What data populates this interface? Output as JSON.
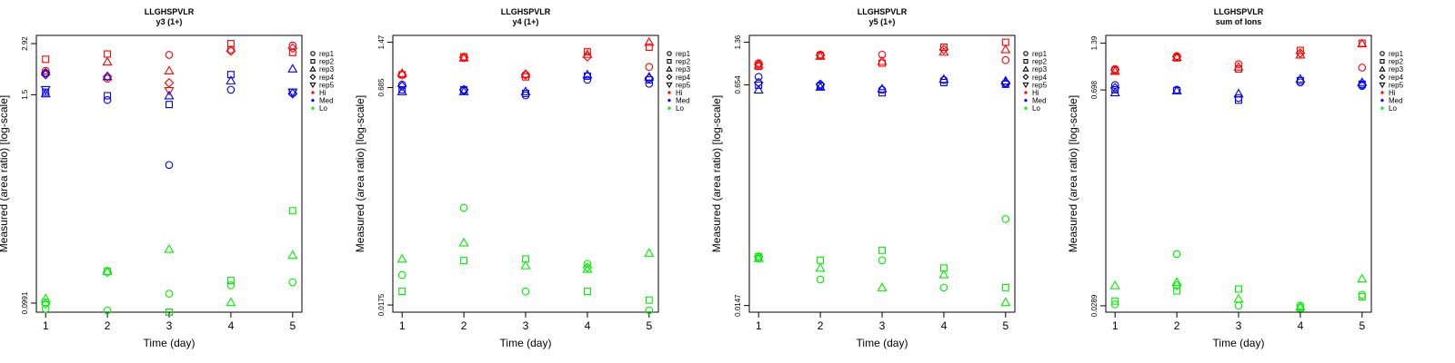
{
  "colors": {
    "Hi": "#ff0000",
    "Med": "#0000ff",
    "Lo": "#00ee00",
    "frame": "#000000"
  },
  "chart_data": [
    {
      "type": "scatter",
      "title": "LLGHSPVLR",
      "subtitle": "y3 (1+)",
      "xlabel": "Time (day)",
      "ylabel": "Measured (area ratio) [log-scale]",
      "xlim": [
        0.85,
        5.15
      ],
      "ylim": [
        0.088,
        3.25
      ],
      "x_ticks": [
        1,
        2,
        3,
        4,
        5
      ],
      "y_ticks": [
        {
          "value": 0.0991,
          "label": "0.0991"
        },
        {
          "value": 1.5,
          "label": "1.5"
        },
        {
          "value": 2.92,
          "label": "2.92"
        }
      ],
      "legend": {
        "reps": [
          "rep1",
          "rep2",
          "rep3",
          "rep4",
          "rep5"
        ],
        "groups": [
          "Hi",
          "Med",
          "Lo"
        ],
        "position": "right"
      },
      "series": [
        {
          "group": "Hi",
          "rep": "rep1",
          "values": [
            2.05,
            1.85,
            2.52,
            2.7,
            2.85
          ]
        },
        {
          "group": "Hi",
          "rep": "rep2",
          "values": [
            2.38,
            2.55,
            null,
            2.92,
            2.6
          ]
        },
        {
          "group": "Hi",
          "rep": "rep3",
          "values": [
            null,
            2.3,
            2.05,
            null,
            null
          ]
        },
        {
          "group": "Hi",
          "rep": "rep4",
          "values": [
            2.0,
            1.9,
            1.75,
            2.65,
            2.75
          ]
        },
        {
          "group": "Hi",
          "rep": "rep5",
          "values": [
            null,
            null,
            1.58,
            null,
            null
          ]
        },
        {
          "group": "Med",
          "rep": "rep1",
          "values": [
            1.98,
            1.4,
            0.6,
            1.6,
            null
          ]
        },
        {
          "group": "Med",
          "rep": "rep2",
          "values": [
            1.55,
            1.48,
            1.32,
            1.95,
            1.55
          ]
        },
        {
          "group": "Med",
          "rep": "rep3",
          "values": [
            1.52,
            1.9,
            1.48,
            1.8,
            2.1
          ]
        },
        {
          "group": "Med",
          "rep": "rep4",
          "values": [
            1.95,
            null,
            null,
            null,
            1.52
          ]
        },
        {
          "group": "Med",
          "rep": "rep5",
          "values": [
            1.6,
            null,
            null,
            null,
            1.55
          ]
        },
        {
          "group": "Lo",
          "rep": "rep1",
          "values": [
            0.092,
            0.09,
            0.112,
            0.125,
            0.13
          ]
        },
        {
          "group": "Lo",
          "rep": "rep2",
          "values": [
            0.1,
            0.15,
            0.088,
            0.133,
            0.33
          ]
        },
        {
          "group": "Lo",
          "rep": "rep3",
          "values": [
            0.105,
            0.15,
            0.2,
            0.1,
            0.185
          ]
        },
        {
          "group": "Lo",
          "rep": "rep4",
          "values": [
            0.098,
            0.148,
            null,
            null,
            null
          ]
        }
      ]
    },
    {
      "type": "scatter",
      "title": "LLGHSPVLR",
      "subtitle": "y4 (1+)",
      "xlabel": "Time (day)",
      "ylabel": "Measured (area ratio) [log-scale]",
      "xlim": [
        0.85,
        5.15
      ],
      "ylim": [
        0.0155,
        1.65
      ],
      "x_ticks": [
        1,
        2,
        3,
        4,
        5
      ],
      "y_ticks": [
        {
          "value": 0.0175,
          "label": "0.0175"
        },
        {
          "value": 0.685,
          "label": "0.685"
        },
        {
          "value": 1.47,
          "label": "1.47"
        }
      ],
      "legend": {
        "reps": [
          "rep1",
          "rep2",
          "rep3",
          "rep4",
          "rep5"
        ],
        "groups": [
          "Hi",
          "Med",
          "Lo"
        ],
        "position": "right"
      },
      "series": [
        {
          "group": "Hi",
          "rep": "rep1",
          "values": [
            0.85,
            1.13,
            0.85,
            null,
            0.97
          ]
        },
        {
          "group": "Hi",
          "rep": "rep2",
          "values": [
            0.85,
            1.15,
            0.82,
            1.25,
            1.35
          ]
        },
        {
          "group": "Hi",
          "rep": "rep3",
          "values": [
            0.87,
            1.13,
            0.86,
            1.2,
            1.47
          ]
        },
        {
          "group": "Hi",
          "rep": "rep4",
          "values": [
            0.85,
            1.14,
            0.85,
            1.15,
            null
          ]
        },
        {
          "group": "Med",
          "rep": "rep1",
          "values": [
            0.72,
            0.65,
            0.6,
            0.78,
            0.73
          ]
        },
        {
          "group": "Med",
          "rep": "rep2",
          "values": [
            0.66,
            0.66,
            0.62,
            0.83,
            0.78
          ]
        },
        {
          "group": "Med",
          "rep": "rep3",
          "values": [
            0.64,
            0.64,
            0.64,
            0.85,
            0.82
          ]
        },
        {
          "group": "Med",
          "rep": "rep4",
          "values": [
            0.7,
            0.66,
            null,
            null,
            0.8
          ]
        },
        {
          "group": "Lo",
          "rep": "rep1",
          "values": [
            0.029,
            0.09,
            0.022,
            0.035,
            0.016
          ]
        },
        {
          "group": "Lo",
          "rep": "rep2",
          "values": [
            0.022,
            0.037,
            0.038,
            0.022,
            0.019
          ]
        },
        {
          "group": "Lo",
          "rep": "rep3",
          "values": [
            0.038,
            0.05,
            0.034,
            0.032,
            0.042
          ]
        },
        {
          "group": "Lo",
          "rep": "rep4",
          "values": [
            null,
            null,
            null,
            0.033,
            null
          ]
        }
      ]
    },
    {
      "type": "scatter",
      "title": "LLGHSPVLR",
      "subtitle": "y5 (1+)",
      "xlabel": "Time (day)",
      "ylabel": "Measured (area ratio) [log-scale]",
      "xlim": [
        0.85,
        5.15
      ],
      "ylim": [
        0.0131,
        1.53
      ],
      "x_ticks": [
        1,
        2,
        3,
        4,
        5
      ],
      "y_ticks": [
        {
          "value": 0.0147,
          "label": "0.0147"
        },
        {
          "value": 0.654,
          "label": "0.654"
        },
        {
          "value": 1.36,
          "label": "1.36"
        }
      ],
      "legend": {
        "reps": [
          "rep1",
          "rep2",
          "rep3",
          "rep4",
          "rep5"
        ],
        "groups": [
          "Hi",
          "Med",
          "Lo"
        ],
        "position": "right"
      },
      "series": [
        {
          "group": "Hi",
          "rep": "rep1",
          "values": [
            0.95,
            1.1,
            1.1,
            null,
            1.0
          ]
        },
        {
          "group": "Hi",
          "rep": "rep2",
          "values": [
            0.9,
            1.08,
            0.95,
            1.25,
            1.36
          ]
        },
        {
          "group": "Hi",
          "rep": "rep3",
          "values": [
            0.92,
            1.07,
            0.98,
            1.15,
            1.2
          ]
        },
        {
          "group": "Hi",
          "rep": "rep4",
          "values": [
            0.93,
            1.09,
            null,
            1.2,
            null
          ]
        },
        {
          "group": "Med",
          "rep": "rep1",
          "values": [
            0.75,
            0.65,
            0.6,
            0.71,
            0.67
          ]
        },
        {
          "group": "Med",
          "rep": "rep2",
          "values": [
            0.65,
            0.64,
            0.57,
            0.68,
            0.66
          ]
        },
        {
          "group": "Med",
          "rep": "rep3",
          "values": [
            0.6,
            0.63,
            0.61,
            0.72,
            0.7
          ]
        },
        {
          "group": "Med",
          "rep": "rep4",
          "values": [
            0.68,
            0.66,
            null,
            null,
            0.68
          ]
        },
        {
          "group": "Lo",
          "rep": "rep1",
          "values": [
            0.033,
            0.023,
            0.032,
            0.02,
            0.065
          ]
        },
        {
          "group": "Lo",
          "rep": "rep2",
          "values": [
            0.034,
            0.032,
            0.038,
            0.028,
            0.02
          ]
        },
        {
          "group": "Lo",
          "rep": "rep3",
          "values": [
            0.033,
            0.028,
            0.02,
            0.025,
            0.0155
          ]
        },
        {
          "group": "Lo",
          "rep": "rep4",
          "values": [
            0.034,
            null,
            null,
            null,
            null
          ]
        }
      ]
    },
    {
      "type": "scatter",
      "title": "LLGHSPVLR",
      "subtitle": "sum of Ions",
      "xlabel": "Time (day)",
      "ylabel": "Measured (area ratio) [log-scale]",
      "xlim": [
        0.85,
        5.15
      ],
      "ylim": [
        0.0263,
        1.56
      ],
      "x_ticks": [
        1,
        2,
        3,
        4,
        5
      ],
      "y_ticks": [
        {
          "value": 0.0289,
          "label": "0.0289"
        },
        {
          "value": 0.698,
          "label": "0.698"
        },
        {
          "value": 1.39,
          "label": "1.39"
        }
      ],
      "legend": {
        "reps": [
          "rep1",
          "rep2",
          "rep3",
          "rep4",
          "rep5"
        ],
        "groups": [
          "Hi",
          "Med",
          "Lo"
        ],
        "position": "right"
      },
      "series": [
        {
          "group": "Hi",
          "rep": "rep1",
          "values": [
            0.95,
            1.15,
            1.02,
            null,
            0.97
          ]
        },
        {
          "group": "Hi",
          "rep": "rep2",
          "values": [
            0.93,
            1.12,
            0.95,
            1.25,
            1.39
          ]
        },
        {
          "group": "Hi",
          "rep": "rep3",
          "values": [
            0.92,
            1.13,
            0.98,
            1.17,
            1.38
          ]
        },
        {
          "group": "Hi",
          "rep": "rep4",
          "values": [
            0.94,
            1.14,
            null,
            1.2,
            null
          ]
        },
        {
          "group": "Med",
          "rep": "rep1",
          "values": [
            0.75,
            0.7,
            0.62,
            0.78,
            0.74
          ]
        },
        {
          "group": "Med",
          "rep": "rep2",
          "values": [
            0.7,
            0.69,
            0.6,
            0.8,
            0.76
          ]
        },
        {
          "group": "Med",
          "rep": "rep3",
          "values": [
            0.67,
            0.69,
            0.66,
            0.82,
            0.78
          ]
        },
        {
          "group": "Med",
          "rep": "rep4",
          "values": [
            0.72,
            null,
            null,
            null,
            0.75
          ]
        },
        {
          "group": "Lo",
          "rep": "rep1",
          "values": [
            0.0295,
            0.062,
            0.029,
            0.029,
            0.034
          ]
        },
        {
          "group": "Lo",
          "rep": "rep2",
          "values": [
            0.031,
            0.036,
            0.037,
            0.028,
            0.033
          ]
        },
        {
          "group": "Lo",
          "rep": "rep3",
          "values": [
            0.039,
            0.041,
            0.032,
            0.0285,
            0.043
          ]
        },
        {
          "group": "Lo",
          "rep": "rep4",
          "values": [
            null,
            0.039,
            null,
            null,
            null
          ]
        }
      ]
    }
  ]
}
